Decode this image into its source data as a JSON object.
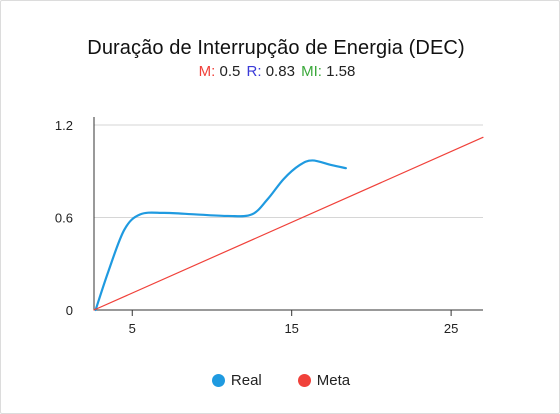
{
  "chart_data": {
    "type": "line",
    "title": "Duração de Interrupção de Energia (DEC)",
    "subtitle": [
      {
        "key": "M:",
        "value": "0.5",
        "color": "#f0413a"
      },
      {
        "key": "R:",
        "value": "0.83",
        "color": "#3a3ad8"
      },
      {
        "key": "MI:",
        "value": "1.58",
        "color": "#3aa83a"
      }
    ],
    "xlim": [
      2.6,
      27
    ],
    "ylim": [
      0,
      1.2
    ],
    "x_ticks": [
      "5",
      "15",
      "25"
    ],
    "y_ticks": [
      "0",
      "0.6",
      "1.2"
    ],
    "grid": true,
    "legend_position": "bottom",
    "series": [
      {
        "name": "Real",
        "color": "#1f9ae0",
        "smooth": true,
        "points": [
          [
            2.7,
            0.0
          ],
          [
            3.5,
            0.25
          ],
          [
            4.5,
            0.52
          ],
          [
            5.5,
            0.62
          ],
          [
            7,
            0.63
          ],
          [
            9,
            0.62
          ],
          [
            11,
            0.61
          ],
          [
            12.5,
            0.62
          ],
          [
            13.5,
            0.72
          ],
          [
            14.5,
            0.85
          ],
          [
            15.5,
            0.94
          ],
          [
            16.3,
            0.97
          ],
          [
            17.5,
            0.94
          ],
          [
            18.4,
            0.92
          ]
        ]
      },
      {
        "name": "Meta",
        "color": "#f0413a",
        "smooth": false,
        "points": [
          [
            2.6,
            0.0
          ],
          [
            27,
            1.12
          ]
        ]
      }
    ]
  }
}
